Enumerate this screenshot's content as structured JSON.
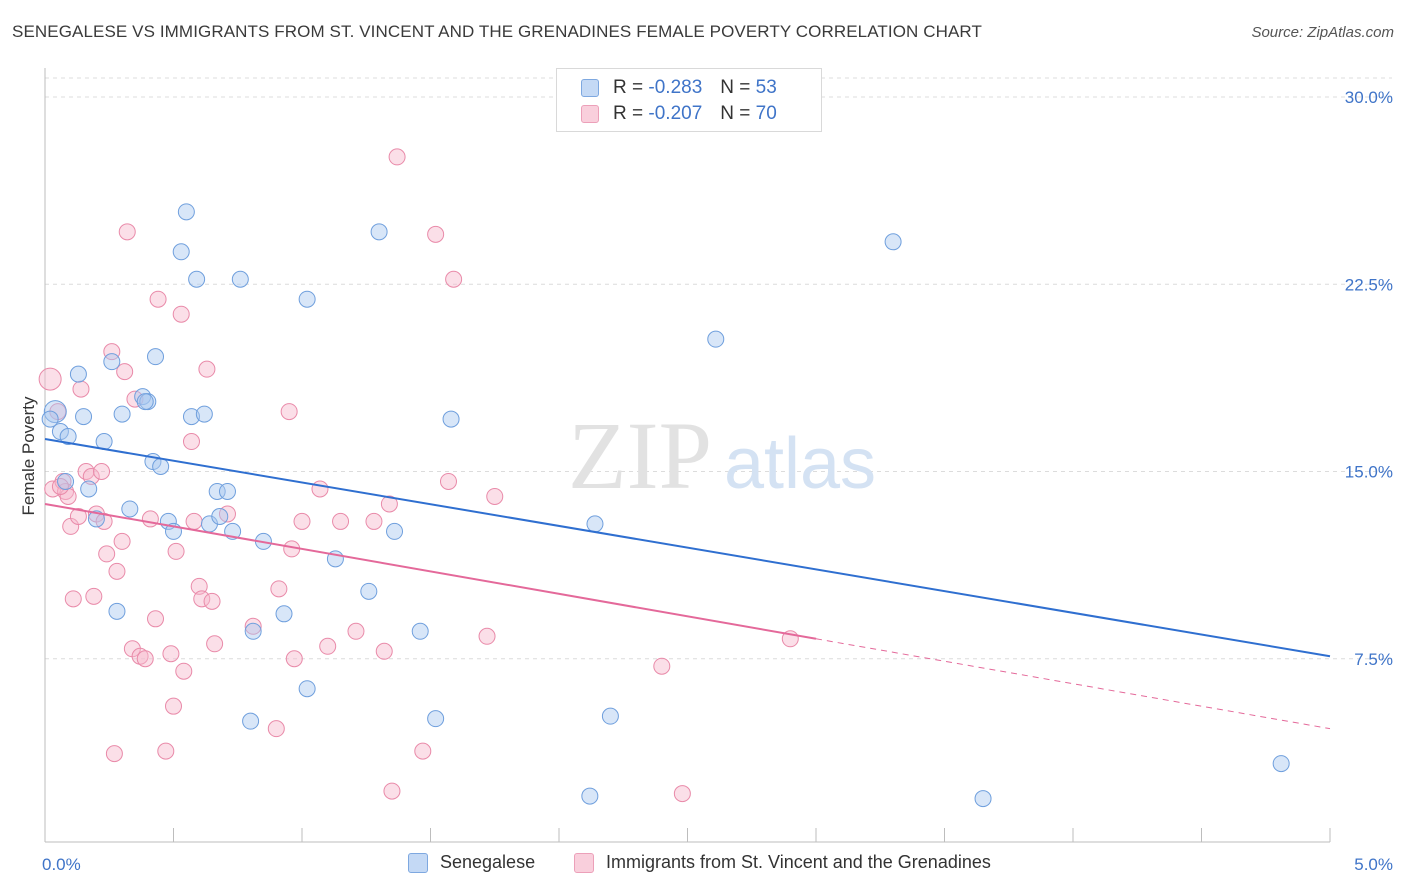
{
  "title": "SENEGALESE VS IMMIGRANTS FROM ST. VINCENT AND THE GRENADINES FEMALE POVERTY CORRELATION CHART",
  "source": "Source: ZipAtlas.com",
  "watermark": {
    "zip": "ZIP",
    "atlas": "atlas"
  },
  "legend": {
    "rows": [
      {
        "r_label": "R =",
        "r_value": "-0.283",
        "n_label": "N =",
        "n_value": "53",
        "color": "#a9c8f0"
      },
      {
        "r_label": "R =",
        "r_value": "-0.207",
        "n_label": "N =",
        "n_value": "70",
        "color": "#f6b8cc"
      }
    ]
  },
  "bottom_legend": {
    "senegalese": "Senegalese",
    "immigrants": "Immigrants from St. Vincent and the Grenadines"
  },
  "chart_data": {
    "type": "scatter",
    "title": "SENEGALESE VS IMMIGRANTS FROM ST. VINCENT AND THE GRENADINES FEMALE POVERTY CORRELATION CHART",
    "xlabel": "",
    "ylabel": "Female Poverty",
    "xlim": [
      0,
      5
    ],
    "ylim": [
      0,
      31
    ],
    "x_tick_labels": [
      {
        "value": 0,
        "label": "0.0%"
      },
      {
        "value": 5,
        "label": "5.0%"
      }
    ],
    "y_tick_labels": [
      {
        "value": 7.5,
        "label": "7.5%"
      },
      {
        "value": 15,
        "label": "15.0%"
      },
      {
        "value": 22.5,
        "label": "22.5%"
      },
      {
        "value": 30,
        "label": "30.0%"
      }
    ],
    "grid": true,
    "legend_position": "top-center",
    "series": [
      {
        "name": "Senegalese",
        "color": "#a9c8f0",
        "stroke": "#6f9fdd",
        "trend": {
          "x": [
            0,
            5
          ],
          "y": [
            16.3,
            7.6
          ],
          "color": "#2f6fd0"
        },
        "points": [
          [
            0.04,
            17.4
          ],
          [
            0.06,
            16.6
          ],
          [
            0.08,
            14.6
          ],
          [
            0.09,
            16.4
          ],
          [
            0.13,
            18.9
          ],
          [
            0.15,
            17.2
          ],
          [
            0.17,
            14.3
          ],
          [
            0.2,
            13.1
          ],
          [
            0.23,
            16.2
          ],
          [
            0.26,
            19.4
          ],
          [
            0.28,
            9.4
          ],
          [
            0.3,
            17.3
          ],
          [
            0.33,
            13.5
          ],
          [
            0.38,
            18.0
          ],
          [
            0.4,
            17.8
          ],
          [
            0.42,
            15.4
          ],
          [
            0.43,
            19.6
          ],
          [
            0.45,
            15.2
          ],
          [
            0.48,
            13.0
          ],
          [
            0.5,
            12.6
          ],
          [
            0.53,
            23.8
          ],
          [
            0.55,
            25.4
          ],
          [
            0.57,
            17.2
          ],
          [
            0.59,
            22.7
          ],
          [
            0.62,
            17.3
          ],
          [
            0.64,
            12.9
          ],
          [
            0.67,
            14.2
          ],
          [
            0.68,
            13.2
          ],
          [
            0.71,
            14.2
          ],
          [
            0.73,
            12.6
          ],
          [
            0.76,
            22.7
          ],
          [
            0.8,
            5.0
          ],
          [
            0.81,
            8.6
          ],
          [
            0.85,
            12.2
          ],
          [
            0.93,
            9.3
          ],
          [
            1.02,
            6.3
          ],
          [
            1.02,
            21.9
          ],
          [
            1.13,
            11.5
          ],
          [
            1.26,
            10.2
          ],
          [
            1.3,
            24.6
          ],
          [
            1.36,
            12.6
          ],
          [
            1.46,
            8.6
          ],
          [
            1.52,
            5.1
          ],
          [
            1.58,
            17.1
          ],
          [
            2.12,
            2.0
          ],
          [
            2.14,
            12.9
          ],
          [
            2.2,
            5.2
          ],
          [
            2.61,
            20.3
          ],
          [
            3.3,
            24.2
          ],
          [
            3.65,
            1.9
          ],
          [
            4.81,
            3.3
          ],
          [
            0.02,
            17.1
          ],
          [
            0.39,
            17.8
          ]
        ]
      },
      {
        "name": "Immigrants from St. Vincent and the Grenadines",
        "color": "#f6b8cc",
        "stroke": "#e98aa9",
        "trend": {
          "x": [
            0,
            3.0
          ],
          "y": [
            13.7,
            8.3
          ],
          "color": "#e4699a",
          "dashed_to": {
            "x": 5,
            "y": 4.7
          }
        },
        "points": [
          [
            0.02,
            18.7
          ],
          [
            0.03,
            14.3
          ],
          [
            0.05,
            17.4
          ],
          [
            0.07,
            14.6
          ],
          [
            0.08,
            14.2
          ],
          [
            0.09,
            14.0
          ],
          [
            0.1,
            12.8
          ],
          [
            0.11,
            9.9
          ],
          [
            0.13,
            13.2
          ],
          [
            0.14,
            18.3
          ],
          [
            0.16,
            15.0
          ],
          [
            0.18,
            14.8
          ],
          [
            0.19,
            10.0
          ],
          [
            0.2,
            13.3
          ],
          [
            0.22,
            15.0
          ],
          [
            0.23,
            13.0
          ],
          [
            0.24,
            11.7
          ],
          [
            0.26,
            19.8
          ],
          [
            0.27,
            3.7
          ],
          [
            0.28,
            11.0
          ],
          [
            0.3,
            12.2
          ],
          [
            0.31,
            19.0
          ],
          [
            0.32,
            24.6
          ],
          [
            0.34,
            7.9
          ],
          [
            0.35,
            17.9
          ],
          [
            0.37,
            7.6
          ],
          [
            0.39,
            7.5
          ],
          [
            0.41,
            13.1
          ],
          [
            0.43,
            9.1
          ],
          [
            0.44,
            21.9
          ],
          [
            0.47,
            3.8
          ],
          [
            0.49,
            7.7
          ],
          [
            0.5,
            5.6
          ],
          [
            0.51,
            11.8
          ],
          [
            0.53,
            21.3
          ],
          [
            0.54,
            7.0
          ],
          [
            0.57,
            16.2
          ],
          [
            0.58,
            13.0
          ],
          [
            0.6,
            10.4
          ],
          [
            0.61,
            9.9
          ],
          [
            0.63,
            19.1
          ],
          [
            0.65,
            9.8
          ],
          [
            0.66,
            8.1
          ],
          [
            0.71,
            13.3
          ],
          [
            0.81,
            8.8
          ],
          [
            0.9,
            4.7
          ],
          [
            0.91,
            10.3
          ],
          [
            0.95,
            17.4
          ],
          [
            0.96,
            11.9
          ],
          [
            0.97,
            7.5
          ],
          [
            1.0,
            13.0
          ],
          [
            1.07,
            14.3
          ],
          [
            1.1,
            8.0
          ],
          [
            1.15,
            13.0
          ],
          [
            1.21,
            8.6
          ],
          [
            1.28,
            13.0
          ],
          [
            1.32,
            7.8
          ],
          [
            1.34,
            13.7
          ],
          [
            1.35,
            2.2
          ],
          [
            1.37,
            27.6
          ],
          [
            1.47,
            3.8
          ],
          [
            1.52,
            24.5
          ],
          [
            1.57,
            14.6
          ],
          [
            1.59,
            22.7
          ],
          [
            1.72,
            8.4
          ],
          [
            1.75,
            14.0
          ],
          [
            2.4,
            7.2
          ],
          [
            2.48,
            2.1
          ],
          [
            2.9,
            8.3
          ],
          [
            0.06,
            14.4
          ]
        ]
      }
    ]
  }
}
